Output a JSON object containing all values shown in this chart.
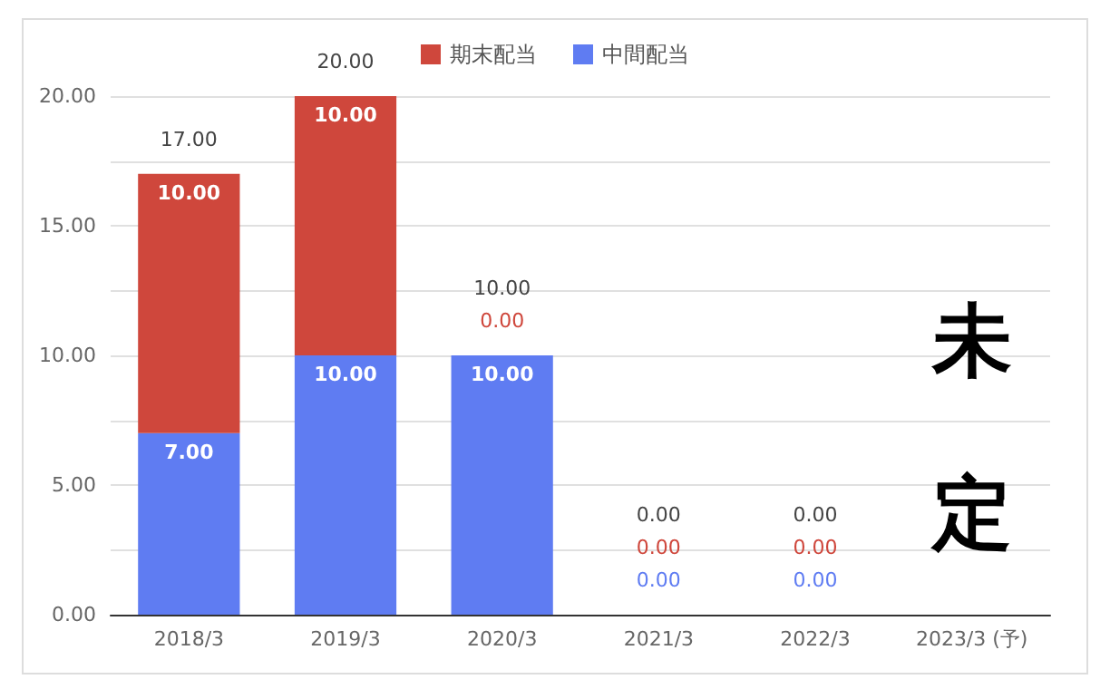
{
  "chart_data": {
    "type": "bar",
    "stacked": true,
    "legend": "top",
    "grid": "y",
    "categories": [
      "2018/3",
      "2019/3",
      "2020/3",
      "2021/3",
      "2022/3",
      "2023/3 (予)"
    ],
    "series": [
      {
        "name": "中間配当",
        "color": "#5f7cf2",
        "values": [
          7,
          10,
          10,
          0,
          0,
          null
        ],
        "value_labels": [
          "7.00",
          "10.00",
          "10.00",
          "0.00",
          "0.00",
          null
        ]
      },
      {
        "name": "期末配当",
        "color": "#cf473c",
        "values": [
          10,
          10,
          0,
          0,
          0,
          null
        ],
        "value_labels": [
          "10.00",
          "10.00",
          "0.00",
          "0.00",
          "0.00",
          null
        ]
      }
    ],
    "totals": [
      "17.00",
      "20.00",
      "10.00",
      "0.00",
      "0.00",
      null
    ],
    "ylim": [
      0,
      20
    ],
    "yticks": [
      {
        "value": 0,
        "label": "0.00"
      },
      {
        "value": 2.5,
        "label": null
      },
      {
        "value": 5,
        "label": "5.00"
      },
      {
        "value": 7.5,
        "label": null
      },
      {
        "value": 10,
        "label": "10.00"
      },
      {
        "value": 12.5,
        "label": null
      },
      {
        "value": 15,
        "label": "15.00"
      },
      {
        "value": 17.5,
        "label": null
      },
      {
        "value": 20,
        "label": "20.00"
      }
    ],
    "annotations": [
      "未定"
    ]
  }
}
